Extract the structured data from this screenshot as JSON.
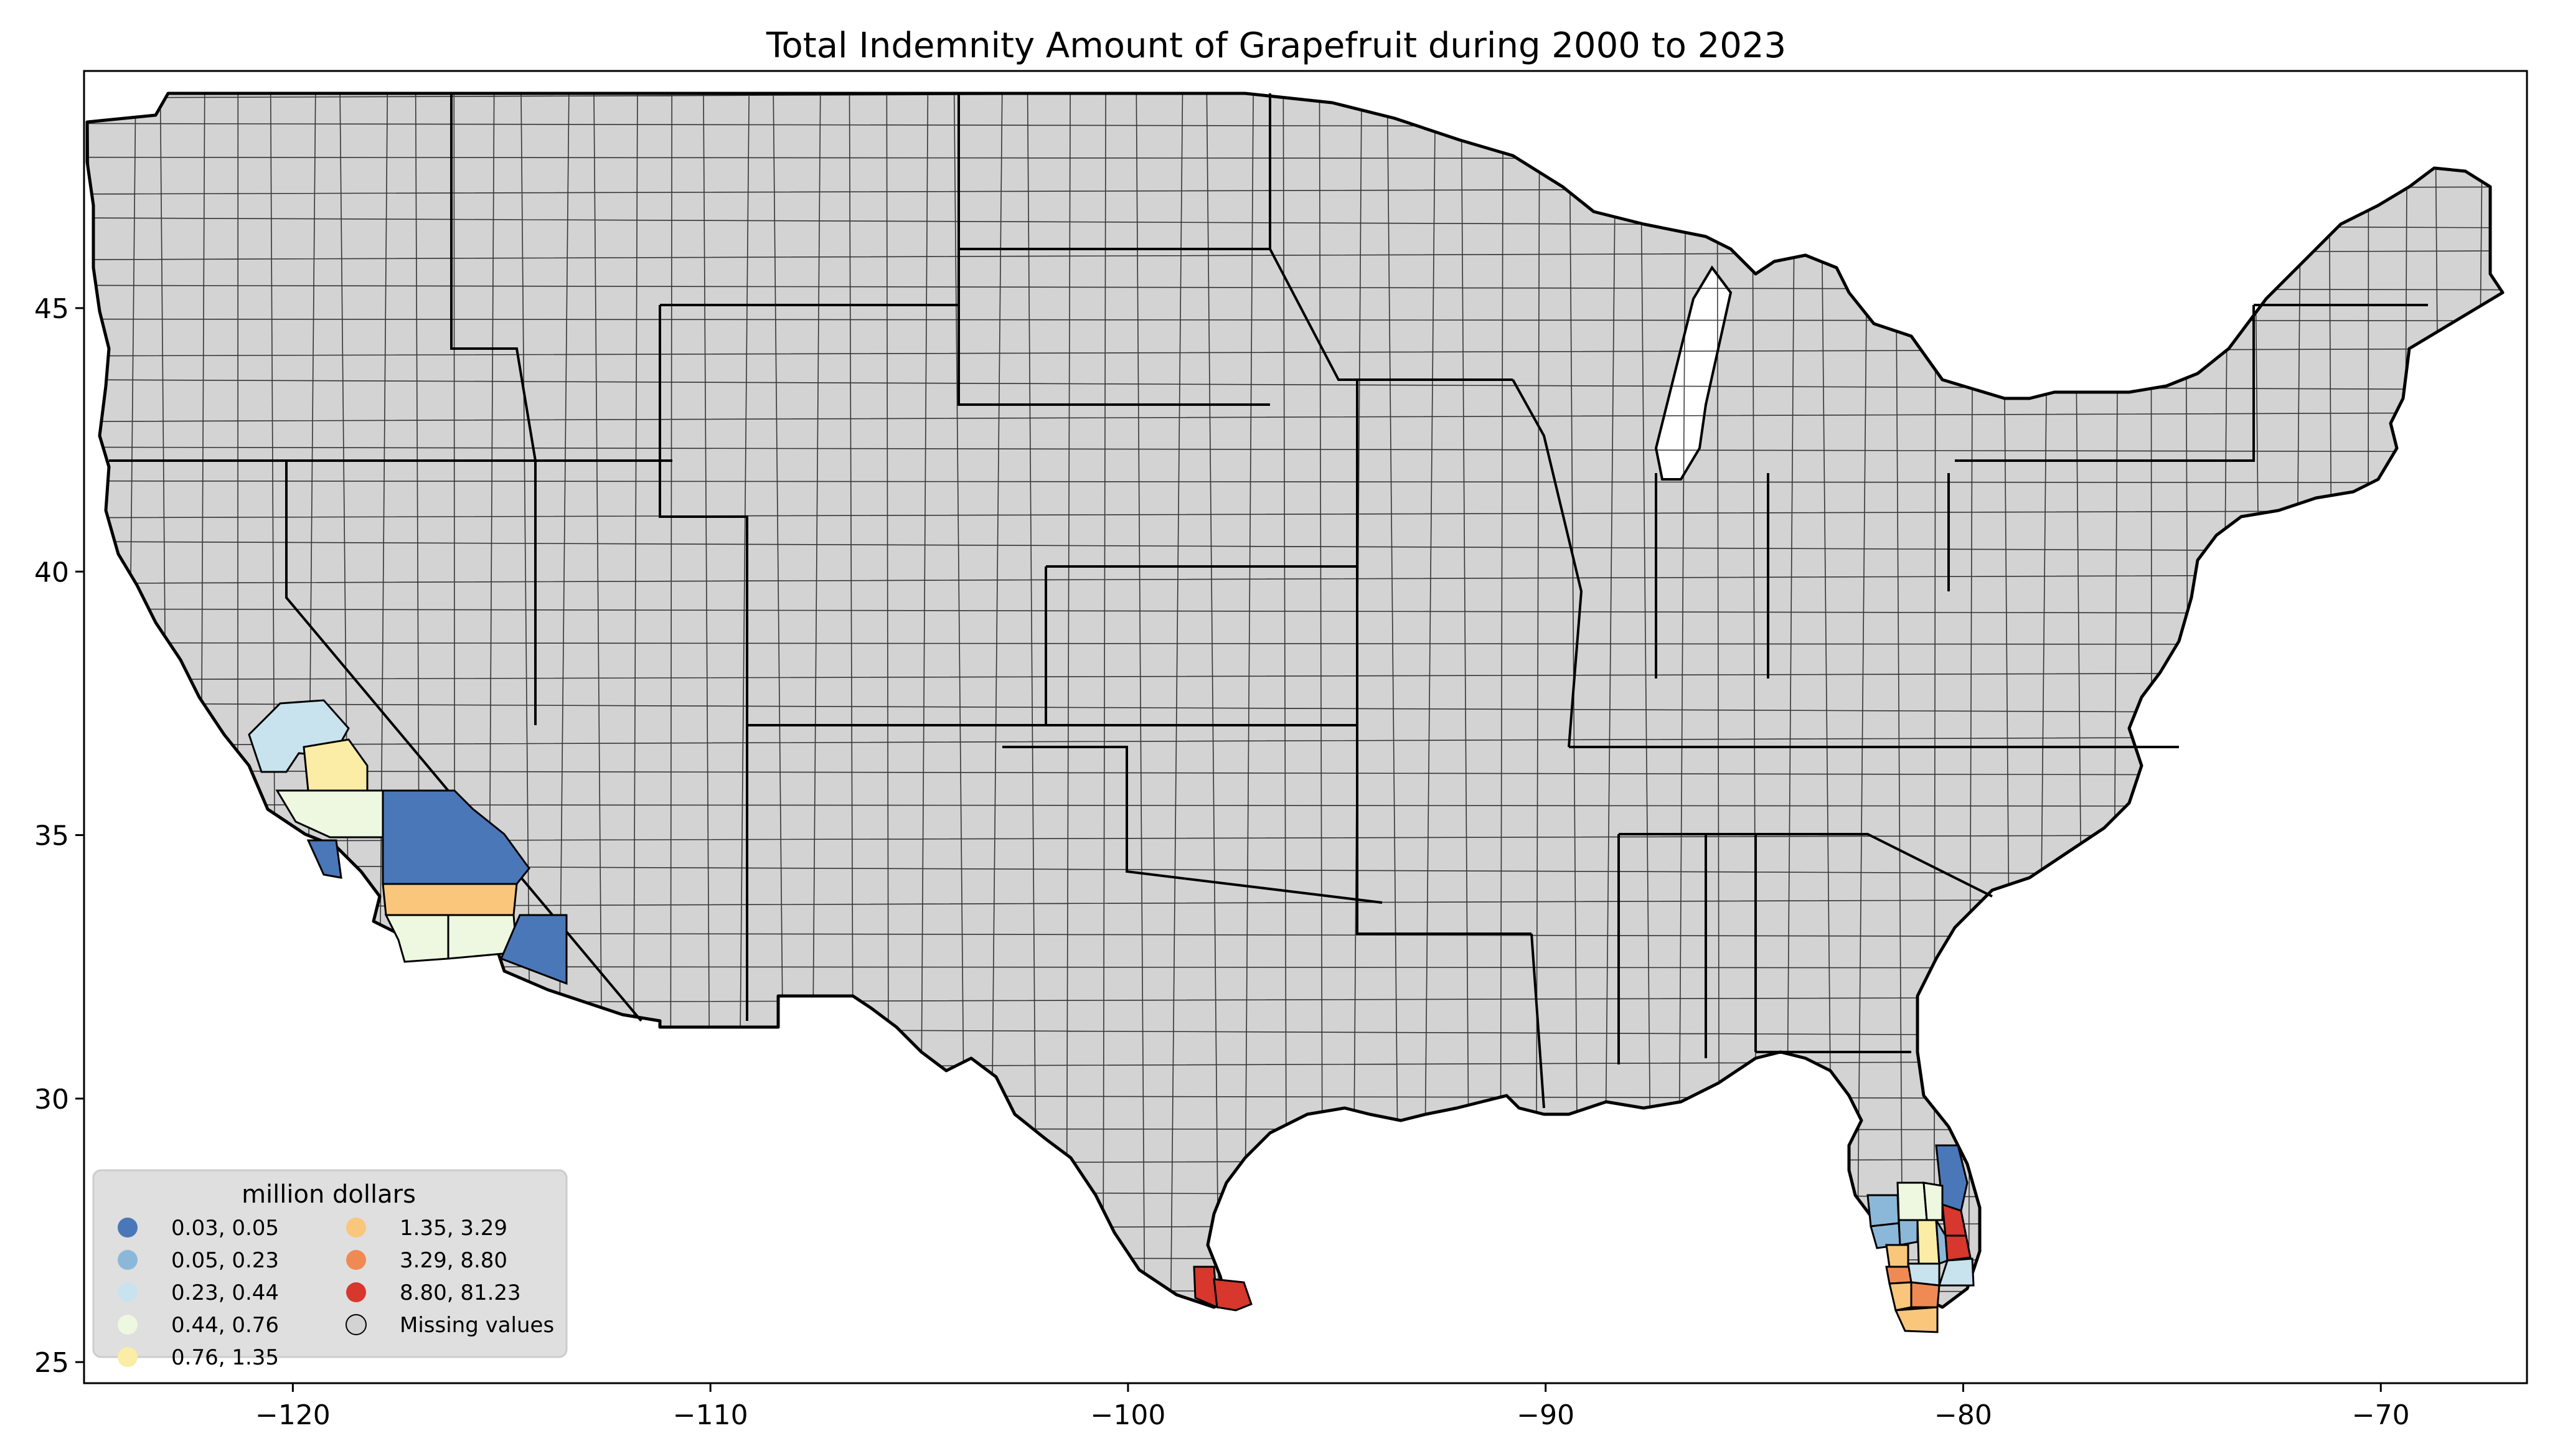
{
  "title": "Total Indemnity Amount of Grapefruit during 2000 to 2023",
  "colors": {
    "background": "#ffffff",
    "county_fill": "#d3d3d3",
    "county_edge": "#000000",
    "legend_bg": "#d9d9d9"
  },
  "axes": {
    "x_range": [
      -125,
      -66.5
    ],
    "y_range": [
      24.6,
      49.5
    ],
    "x_ticks": [
      -120,
      -110,
      -100,
      -90,
      -80,
      -70
    ],
    "y_ticks": [
      25,
      30,
      35,
      40,
      45
    ],
    "x_tick_labels": [
      "−120",
      "−110",
      "−100",
      "−90",
      "−80",
      "−70"
    ],
    "y_tick_labels": [
      "25",
      "30",
      "35",
      "40",
      "45"
    ]
  },
  "legend": {
    "title": "million dollars",
    "placement": "lower-left",
    "items": [
      {
        "label": "0.03,  0.05",
        "color": "#4a77b8"
      },
      {
        "label": "0.05,  0.23",
        "color": "#8bb8d9"
      },
      {
        "label": "0.23,  0.44",
        "color": "#c8e3ee"
      },
      {
        "label": "0.44,  0.76",
        "color": "#eef7e0"
      },
      {
        "label": "0.76,  1.35",
        "color": "#fbeca6"
      },
      {
        "label": "1.35,  3.29",
        "color": "#f9c67c"
      },
      {
        "label": "3.29,  8.80",
        "color": "#f08a55"
      },
      {
        "label": "8.80, 81.23",
        "color": "#d7372c"
      },
      {
        "label": "Missing values",
        "color": "#d3d3d3"
      }
    ]
  },
  "chart_data": {
    "type": "choropleth",
    "title": "Total Indemnity Amount of Grapefruit during 2000 to 2023",
    "unit": "million dollars",
    "xlim": [
      -125,
      -66.5
    ],
    "ylim": [
      24.6,
      49.5
    ],
    "colored_regions": [
      {
        "region": "California – San Joaquin Valley north",
        "class": "0.23,  0.44"
      },
      {
        "region": "California – Tulare",
        "class": "0.76,  1.35"
      },
      {
        "region": "California – Kern",
        "class": "0.44,  0.76"
      },
      {
        "region": "California – Ventura",
        "class": "0.03,  0.05"
      },
      {
        "region": "California – San Bernardino",
        "class": "0.03,  0.05"
      },
      {
        "region": "California – Riverside",
        "class": "1.35,  3.29"
      },
      {
        "region": "California – San Diego",
        "class": "0.44,  0.76"
      },
      {
        "region": "California – Imperial",
        "class": "0.44,  0.76"
      },
      {
        "region": "Arizona – Yuma",
        "class": "0.03,  0.05"
      },
      {
        "region": "Texas – Hidalgo",
        "class": "8.80, 81.23"
      },
      {
        "region": "Texas – Cameron",
        "class": "8.80, 81.23"
      },
      {
        "region": "Florida – Brevard",
        "class": "0.03,  0.05"
      },
      {
        "region": "Florida – Polk",
        "class": "0.44,  0.76"
      },
      {
        "region": "Florida – Hillsborough",
        "class": "0.05,  0.23"
      },
      {
        "region": "Florida – Highlands",
        "class": "0.76,  1.35"
      },
      {
        "region": "Florida – Indian River",
        "class": "8.80, 81.23"
      },
      {
        "region": "Florida – St. Lucie",
        "class": "8.80, 81.23"
      },
      {
        "region": "Florida – Martin",
        "class": "0.23,  0.44"
      },
      {
        "region": "Florida – DeSoto",
        "class": "1.35,  3.29"
      },
      {
        "region": "Florida – Hardee",
        "class": "0.05,  0.23"
      },
      {
        "region": "Florida – Manatee",
        "class": "0.05,  0.23"
      },
      {
        "region": "Florida – Charlotte",
        "class": "3.29,  8.80"
      },
      {
        "region": "Florida – Glades",
        "class": "0.23,  0.44"
      },
      {
        "region": "Florida – Okeechobee",
        "class": "0.05,  0.23"
      },
      {
        "region": "Florida – Hendry",
        "class": "3.29,  8.80"
      },
      {
        "region": "Florida – Lee",
        "class": "1.35,  3.29"
      },
      {
        "region": "Florida – Collier",
        "class": "1.35,  3.29"
      },
      {
        "region": "Florida – Osceola",
        "class": "0.44,  0.76"
      }
    ]
  }
}
